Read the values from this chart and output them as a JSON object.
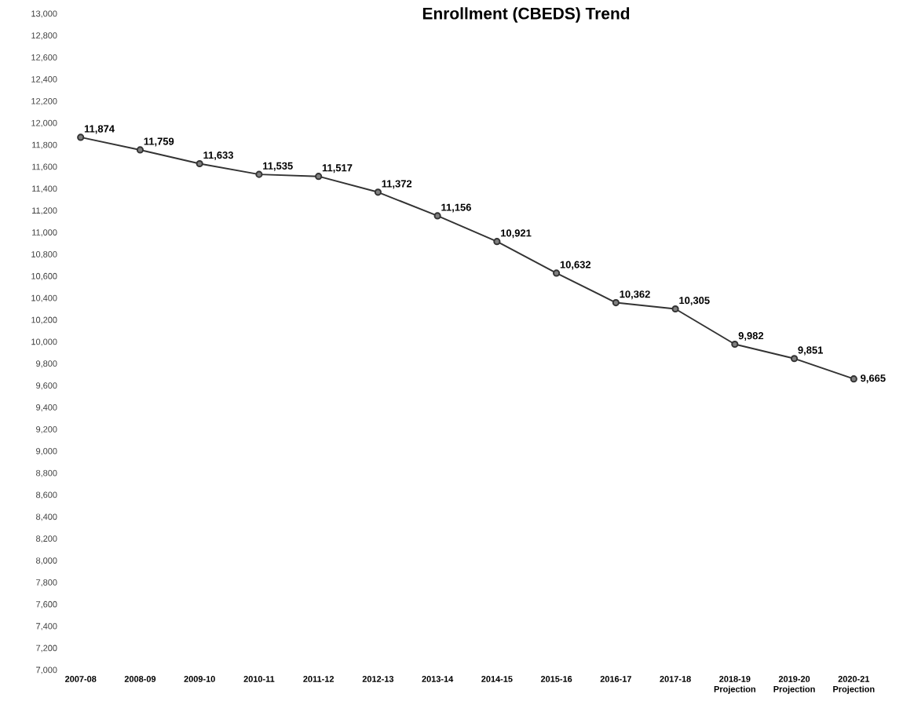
{
  "chart_data": {
    "type": "line",
    "title": "Enrollment (CBEDS) Trend",
    "categories": [
      "2007-08",
      "2008-09",
      "2009-10",
      "2010-11",
      "2011-12",
      "2012-13",
      "2013-14",
      "2014-15",
      "2015-16",
      "2016-17",
      "2017-18",
      "2018-19 Projection",
      "2019-20 Projection",
      "2020-21 Projection"
    ],
    "series": [
      {
        "color": "#333333",
        "values": [
          11874,
          11759,
          11633,
          11535,
          11517,
          11372,
          11156,
          10921,
          10632,
          10362,
          10305,
          9982,
          9851,
          9665
        ],
        "value_labels": [
          "11,874",
          "11,759",
          "11,633",
          "11,535",
          "11,517",
          "11,372",
          "11,156",
          "10,921",
          "10,632",
          "10,362",
          "10,305",
          "9,982",
          "9,851",
          "9,665"
        ]
      }
    ],
    "ylim": [
      7000,
      13000
    ],
    "yticks": [
      {
        "value": 7000,
        "label": "7,000"
      },
      {
        "value": 7200,
        "label": "7,200"
      },
      {
        "value": 7400,
        "label": "7,400"
      },
      {
        "value": 7600,
        "label": "7,600"
      },
      {
        "value": 7800,
        "label": "7,800"
      },
      {
        "value": 8000,
        "label": "8,000"
      },
      {
        "value": 8200,
        "label": "8,200"
      },
      {
        "value": 8400,
        "label": "8,400"
      },
      {
        "value": 8600,
        "label": "8,600"
      },
      {
        "value": 8800,
        "label": "8,800"
      },
      {
        "value": 9000,
        "label": "9,000"
      },
      {
        "value": 9200,
        "label": "9,200"
      },
      {
        "value": 9400,
        "label": "9,400"
      },
      {
        "value": 9600,
        "label": "9,600"
      },
      {
        "value": 9800,
        "label": "9,800"
      },
      {
        "value": 10000,
        "label": "10,000"
      },
      {
        "value": 10200,
        "label": "10,200"
      },
      {
        "value": 10400,
        "label": "10,400"
      },
      {
        "value": 10600,
        "label": "10,600"
      },
      {
        "value": 10800,
        "label": "10,800"
      },
      {
        "value": 11000,
        "label": "11,000"
      },
      {
        "value": 11200,
        "label": "11,200"
      },
      {
        "value": 11400,
        "label": "11,400"
      },
      {
        "value": 11600,
        "label": "11,600"
      },
      {
        "value": 11800,
        "label": "11,800"
      },
      {
        "value": 12000,
        "label": "12,000"
      },
      {
        "value": 12200,
        "label": "12,200"
      },
      {
        "value": 12400,
        "label": "12,400"
      },
      {
        "value": 12600,
        "label": "12,600"
      },
      {
        "value": 12800,
        "label": "12,800"
      },
      {
        "value": 13000,
        "label": "13,000"
      }
    ],
    "grid": false,
    "marker": "circle",
    "line_style": "solid"
  }
}
